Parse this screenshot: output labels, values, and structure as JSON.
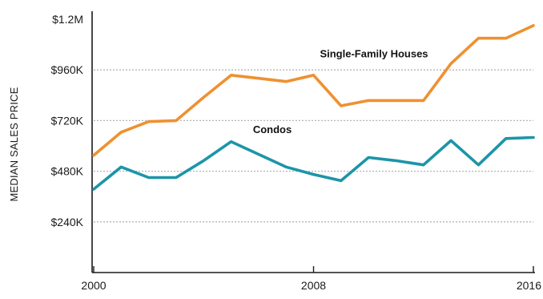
{
  "chart_data": {
    "type": "line",
    "title": "",
    "xlabel": "",
    "ylabel": "MEDIAN SALES PRICE",
    "x_ticks": [
      {
        "value": 2000,
        "label": "2000"
      },
      {
        "value": 2008,
        "label": "2008"
      },
      {
        "value": 2016,
        "label": "2016"
      }
    ],
    "y_ticks": [
      {
        "value": 240000,
        "label": "$240K"
      },
      {
        "value": 480000,
        "label": "$480K"
      },
      {
        "value": 720000,
        "label": "$720K"
      },
      {
        "value": 960000,
        "label": "$960K"
      },
      {
        "value": 1200000,
        "label": "$1.2M"
      }
    ],
    "xlim": [
      2000,
      2016
    ],
    "ylim": [
      0,
      1200000
    ],
    "grid": "horizontal-dotted",
    "x": [
      2000,
      2001,
      2002,
      2003,
      2004,
      2005,
      2006,
      2007,
      2008,
      2009,
      2010,
      2011,
      2012,
      2013,
      2014,
      2015,
      2016
    ],
    "series": [
      {
        "name": "Single-Family Houses",
        "color": "#EE9131",
        "values": [
          555000,
          665000,
          715000,
          720000,
          830000,
          935000,
          920000,
          905000,
          935000,
          790000,
          815000,
          815000,
          815000,
          990000,
          1110000,
          1110000,
          1170000
        ]
      },
      {
        "name": "Condos",
        "color": "#1C95A8",
        "values": [
          395000,
          500000,
          450000,
          450000,
          530000,
          620000,
          560000,
          500000,
          465000,
          435000,
          545000,
          530000,
          510000,
          625000,
          510000,
          635000,
          640000
        ]
      }
    ],
    "annotations": [
      {
        "text": "Single-Family Houses",
        "series": 0,
        "near_x": 2010.2,
        "near_y": 1020000
      },
      {
        "text": "Condos",
        "series": 1,
        "near_x": 2006.5,
        "near_y": 660000
      }
    ]
  }
}
